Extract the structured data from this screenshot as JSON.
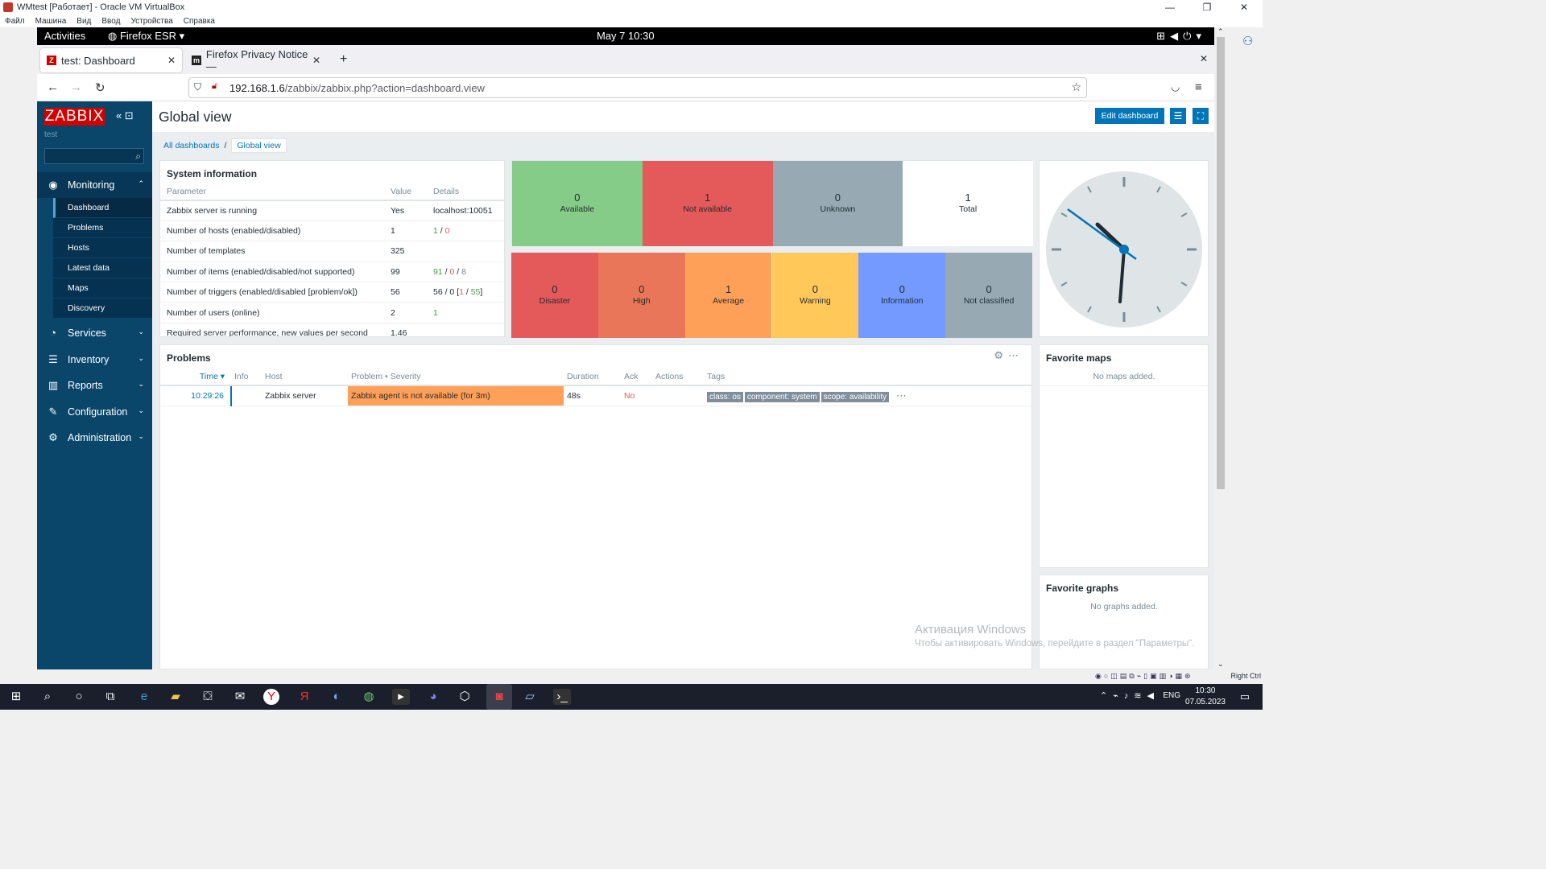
{
  "vbox": {
    "title": "WMtest [Работает] - Oracle VM VirtualBox",
    "menu": [
      "Файл",
      "Машина",
      "Вид",
      "Ввод",
      "Устройства",
      "Справка"
    ],
    "status_right": "Right Ctrl"
  },
  "gnome": {
    "activities": "Activities",
    "app": "Firefox ESR ▾",
    "clock": "May 7  10:30"
  },
  "firefox": {
    "tabs": [
      {
        "label": "test: Dashboard",
        "favicon": "Z"
      },
      {
        "label": "Firefox Privacy Notice —",
        "favicon": "m"
      }
    ],
    "url_host": "192.168.1.6",
    "url_path": "/zabbix/zabbix.php?action=dashboard.view"
  },
  "zabbix": {
    "logo": "ZABBIX",
    "instance": "test",
    "menu": {
      "monitoring": "Monitoring",
      "monitoring_items": [
        "Dashboard",
        "Problems",
        "Hosts",
        "Latest data",
        "Maps",
        "Discovery"
      ],
      "services": "Services",
      "inventory": "Inventory",
      "reports": "Reports",
      "configuration": "Configuration",
      "administration": "Administration"
    },
    "page_title": "Global view",
    "edit_dashboard": "Edit dashboard",
    "breadcrumb": {
      "all": "All dashboards",
      "sep": "/",
      "current": "Global view"
    },
    "sysinfo": {
      "title": "System information",
      "headers": [
        "Parameter",
        "Value",
        "Details"
      ],
      "rows": [
        {
          "param": "Zabbix server is running",
          "value": "Yes",
          "details": "localhost:10051"
        },
        {
          "param": "Number of hosts (enabled/disabled)",
          "value": "1",
          "d1": "1",
          "d2": "0"
        },
        {
          "param": "Number of templates",
          "value": "325"
        },
        {
          "param": "Number of items (enabled/disabled/not supported)",
          "value": "99",
          "d1": "91",
          "d2": "0",
          "d3": "8"
        },
        {
          "param": "Number of triggers (enabled/disabled [problem/ok])",
          "value": "56",
          "d_pre": "56 / 0 [",
          "d1": "1",
          "d_mid": " / ",
          "d2": "55",
          "d_post": "]"
        },
        {
          "param": "Number of users (online)",
          "value": "2",
          "d1": "1"
        },
        {
          "param": "Required server performance, new values per second",
          "value": "1.46"
        }
      ]
    },
    "availability": [
      {
        "count": "0",
        "label": "Available",
        "color": "#86cc89"
      },
      {
        "count": "1",
        "label": "Not available",
        "color": "#e45959"
      },
      {
        "count": "0",
        "label": "Unknown",
        "color": "#97aab3"
      },
      {
        "count": "1",
        "label": "Total",
        "color": "#ffffff"
      }
    ],
    "severity": [
      {
        "count": "0",
        "label": "Disaster",
        "color": "#e45959"
      },
      {
        "count": "0",
        "label": "High",
        "color": "#e97659"
      },
      {
        "count": "1",
        "label": "Average",
        "color": "#ffa059"
      },
      {
        "count": "0",
        "label": "Warning",
        "color": "#ffc859"
      },
      {
        "count": "0",
        "label": "Information",
        "color": "#7499ff"
      },
      {
        "count": "0",
        "label": "Not classified",
        "color": "#97aab3"
      }
    ],
    "problems": {
      "title": "Problems",
      "headers": [
        "Time ▾",
        "Info",
        "Host",
        "Problem • Severity",
        "Duration",
        "Ack",
        "Actions",
        "Tags"
      ],
      "row": {
        "time": "10:29:26",
        "host": "Zabbix server",
        "problem": "Zabbix agent is not available (for 3m)",
        "duration": "48s",
        "ack": "No",
        "tags": [
          "class: os",
          "component: system",
          "scope: availability"
        ]
      }
    },
    "favorite_maps": {
      "title": "Favorite maps",
      "empty": "No maps added."
    },
    "favorite_graphs": {
      "title": "Favorite graphs",
      "empty": "No graphs added."
    }
  },
  "watermark": {
    "line1": "Активация Windows",
    "line2": "Чтобы активировать Windows, перейдите в раздел \"Параметры\"."
  },
  "taskbar": {
    "lang": "ENG",
    "time": "10:30",
    "date": "07.05.2023"
  }
}
